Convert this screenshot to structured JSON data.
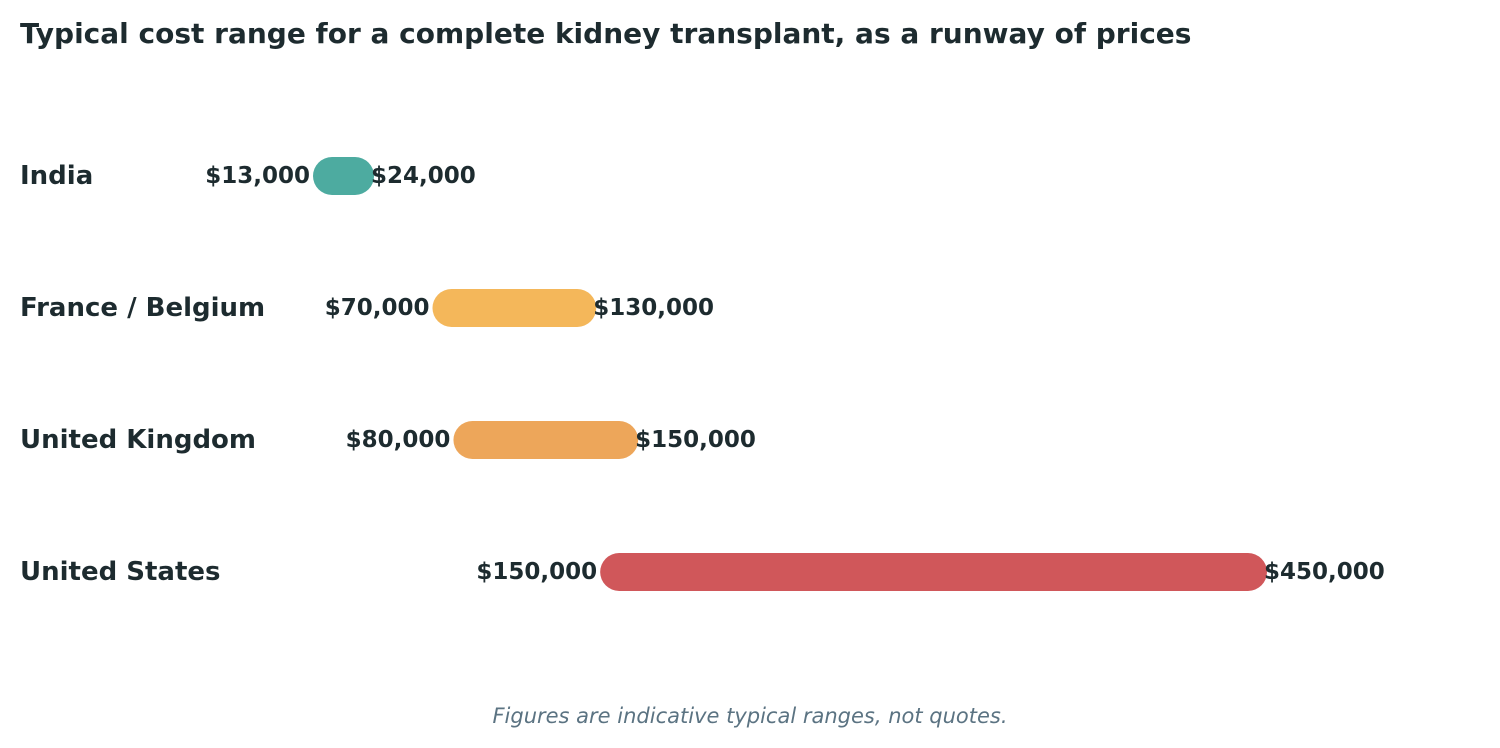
{
  "chart_data": {
    "type": "range-bar",
    "title": "Typical cost range for a complete kidney transplant, as a runway of prices",
    "xlim": [
      0,
      490000
    ],
    "grid": false,
    "legend": "none",
    "value_format": "usd",
    "series": [
      {
        "category": "India",
        "low": 13000,
        "high": 24000,
        "low_label": "$13,000",
        "high_label": "$24,000",
        "color": "#4daba0"
      },
      {
        "category": "France / Belgium",
        "low": 70000,
        "high": 130000,
        "low_label": "$70,000",
        "high_label": "$130,000",
        "color": "#f4b75a"
      },
      {
        "category": "United Kingdom",
        "low": 80000,
        "high": 150000,
        "low_label": "$80,000",
        "high_label": "$150,000",
        "color": "#eda65a"
      },
      {
        "category": "United States",
        "low": 150000,
        "high": 450000,
        "low_label": "$150,000",
        "high_label": "$450,000",
        "color": "#d0575a"
      }
    ],
    "footnote": "Figures are indicative typical ranges, not quotes."
  }
}
